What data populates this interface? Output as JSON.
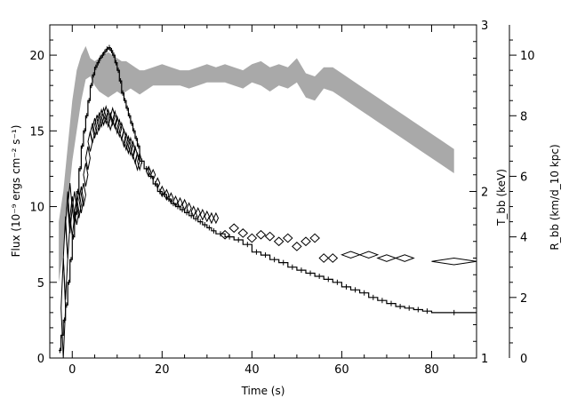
{
  "chart_data": {
    "type": "line",
    "xlabel": "Time (s)",
    "ylabel": "Flux (10⁻⁹ ergs cm⁻² s⁻¹)",
    "ylabel_right_inner": "T_bb (keV)",
    "ylabel_right_outer": "R_bb (km/d_10 kpc)",
    "xlim": [
      -5,
      90
    ],
    "ylim": [
      0,
      22
    ],
    "y2lim": [
      1,
      3
    ],
    "y3lim": [
      0,
      11
    ],
    "x_ticks": [
      "0",
      "20",
      "40",
      "60",
      "80"
    ],
    "y_ticks": [
      "0",
      "5",
      "10",
      "15",
      "20"
    ],
    "y2_ticks": [
      "1",
      "2",
      "3"
    ],
    "y3_ticks": [
      "0",
      "2",
      "4",
      "6",
      "8",
      "10"
    ],
    "series": [
      {
        "kind": "flux-histogram",
        "x": [
          -3,
          -2.5,
          -2,
          -1.5,
          -1,
          -0.5,
          0,
          0.5,
          1,
          1.5,
          2,
          2.5,
          3,
          3.5,
          4,
          4.5,
          5,
          5.5,
          6,
          6.5,
          7,
          7.5,
          8,
          8.5,
          9,
          9.5,
          10,
          10.5,
          11,
          11.5,
          12,
          12.5,
          13,
          13.5,
          14,
          14.5,
          15,
          16,
          17,
          18,
          19,
          20,
          21,
          22,
          23,
          24,
          25,
          26,
          27,
          28,
          29,
          30,
          31,
          32,
          34,
          36,
          38,
          40,
          42,
          44,
          46,
          48,
          50,
          52,
          54,
          56,
          58,
          60,
          62,
          64,
          66,
          68,
          70,
          72,
          74,
          76,
          78,
          80,
          90
        ],
        "y": [
          0.5,
          1.5,
          2.5,
          3.5,
          5,
          6.5,
          8,
          9.5,
          11,
          12.5,
          14,
          15,
          16,
          17,
          18,
          18.7,
          19.2,
          19.5,
          19.8,
          20,
          20.2,
          20.4,
          20.5,
          20.3,
          20,
          19.5,
          19,
          18.3,
          17.5,
          17,
          16.5,
          16,
          15.5,
          15,
          14.5,
          14,
          13,
          12.5,
          12,
          11.5,
          11,
          10.8,
          10.5,
          10.2,
          10,
          9.8,
          9.6,
          9.4,
          9.2,
          9,
          8.8,
          8.6,
          8.4,
          8.2,
          8,
          7.8,
          7.5,
          7,
          6.8,
          6.5,
          6.3,
          6,
          5.8,
          5.6,
          5.4,
          5.2,
          5,
          4.7,
          4.5,
          4.3,
          4,
          3.8,
          3.6,
          3.4,
          3.3,
          3.2,
          3.1,
          3,
          2.7
        ]
      },
      {
        "kind": "temperature-diamonds",
        "x": [
          -2,
          -1.5,
          -1,
          -0.5,
          0,
          0.5,
          1,
          1.5,
          2,
          2.5,
          3,
          3.5,
          4,
          4.5,
          5,
          5.5,
          6,
          6.5,
          7,
          7.5,
          8,
          8.5,
          9,
          9.5,
          10,
          10.5,
          11,
          11.5,
          12,
          12.5,
          13,
          13.5,
          14,
          14.5,
          15,
          17,
          18,
          19,
          20,
          21,
          22,
          23,
          24,
          25,
          26,
          27,
          28,
          29,
          30,
          31,
          32,
          34,
          36,
          38,
          40,
          42,
          44,
          46,
          48,
          50,
          52,
          54,
          56,
          58,
          62,
          66,
          70,
          74,
          85
        ],
        "y": [
          1.3,
          1.6,
          1.8,
          1.9,
          1.85,
          1.9,
          1.88,
          1.92,
          1.95,
          1.98,
          2.1,
          2.2,
          2.3,
          2.35,
          2.38,
          2.4,
          2.42,
          2.44,
          2.45,
          2.46,
          2.44,
          2.42,
          2.45,
          2.43,
          2.4,
          2.38,
          2.36,
          2.32,
          2.3,
          2.28,
          2.27,
          2.25,
          2.22,
          2.18,
          2.18,
          2.12,
          2.1,
          2.05,
          2,
          1.98,
          1.96,
          1.94,
          1.93,
          1.92,
          1.9,
          1.88,
          1.87,
          1.86,
          1.85,
          1.84,
          1.84,
          1.74,
          1.78,
          1.75,
          1.72,
          1.74,
          1.73,
          1.7,
          1.72,
          1.67,
          1.7,
          1.72,
          1.6,
          1.6,
          1.62,
          1.62,
          1.6,
          1.6,
          1.58
        ],
        "err": [
          0.3,
          0.25,
          0.2,
          0.15,
          0.12,
          0.1,
          0.08,
          0.08,
          0.08,
          0.07,
          0.07,
          0.07,
          0.06,
          0.06,
          0.06,
          0.06,
          0.05,
          0.05,
          0.05,
          0.05,
          0.05,
          0.05,
          0.05,
          0.05,
          0.05,
          0.05,
          0.05,
          0.05,
          0.05,
          0.05,
          0.05,
          0.05,
          0.05,
          0.05,
          0.05,
          0.03,
          0.03,
          0.03,
          0.03,
          0.03,
          0.03,
          0.03,
          0.03,
          0.03,
          0.03,
          0.03,
          0.03,
          0.03,
          0.03,
          0.03,
          0.03,
          0.025,
          0.025,
          0.025,
          0.025,
          0.025,
          0.025,
          0.025,
          0.025,
          0.025,
          0.025,
          0.025,
          0.025,
          0.025,
          0.02,
          0.02,
          0.02,
          0.02,
          0.02
        ],
        "xerr": [
          0.25,
          0.25,
          0.25,
          0.25,
          0.25,
          0.25,
          0.25,
          0.25,
          0.25,
          0.25,
          0.25,
          0.25,
          0.25,
          0.25,
          0.25,
          0.25,
          0.25,
          0.25,
          0.25,
          0.25,
          0.25,
          0.25,
          0.25,
          0.25,
          0.25,
          0.25,
          0.25,
          0.25,
          0.25,
          0.25,
          0.25,
          0.25,
          0.25,
          0.25,
          0.25,
          0.5,
          0.5,
          0.5,
          0.5,
          0.5,
          0.5,
          0.5,
          0.5,
          0.5,
          0.5,
          0.5,
          0.5,
          0.5,
          0.5,
          0.5,
          0.5,
          1,
          1,
          1,
          1,
          1,
          1,
          1,
          1,
          1,
          1,
          1,
          1,
          1,
          2,
          2,
          2,
          2,
          5
        ]
      },
      {
        "kind": "radius-band",
        "x": [
          -3,
          -2,
          -1,
          0,
          1,
          2,
          3,
          4,
          5,
          6,
          7,
          8,
          9,
          10,
          11,
          12,
          13,
          14,
          15,
          16,
          18,
          20,
          22,
          24,
          26,
          28,
          30,
          32,
          34,
          36,
          38,
          40,
          42,
          44,
          46,
          48,
          50,
          52,
          54,
          56,
          58,
          60,
          62,
          64,
          66,
          68,
          70,
          72,
          74,
          76,
          78,
          80,
          82,
          85
        ],
        "lo": [
          2.5,
          3.5,
          5,
          6.5,
          7.5,
          8.5,
          9.2,
          9.3,
          9,
          8.8,
          8.7,
          8.6,
          8.7,
          8.8,
          8.7,
          8.8,
          8.9,
          8.8,
          8.7,
          8.8,
          9.0,
          9.0,
          9.0,
          9.0,
          8.9,
          9.0,
          9.1,
          9.1,
          9.1,
          9.0,
          8.9,
          9.1,
          9.0,
          8.8,
          9.0,
          8.9,
          9.1,
          8.6,
          8.5,
          8.9,
          8.8,
          8.6,
          8.4,
          8.2,
          8.0,
          7.8,
          7.6,
          7.4,
          7.2,
          7.0,
          6.8,
          6.6,
          6.4,
          6.1
        ],
        "hi": [
          4.5,
          5.5,
          7,
          8.5,
          9.5,
          10,
          10.3,
          9.9,
          9.8,
          9.9,
          10.0,
          10.1,
          10.0,
          9.9,
          9.8,
          9.8,
          9.7,
          9.6,
          9.5,
          9.5,
          9.6,
          9.7,
          9.6,
          9.5,
          9.5,
          9.6,
          9.7,
          9.6,
          9.7,
          9.6,
          9.5,
          9.7,
          9.8,
          9.6,
          9.7,
          9.6,
          9.9,
          9.4,
          9.3,
          9.6,
          9.6,
          9.4,
          9.2,
          9.0,
          8.8,
          8.6,
          8.4,
          8.2,
          8.0,
          7.8,
          7.6,
          7.4,
          7.2,
          6.9
        ]
      }
    ]
  }
}
